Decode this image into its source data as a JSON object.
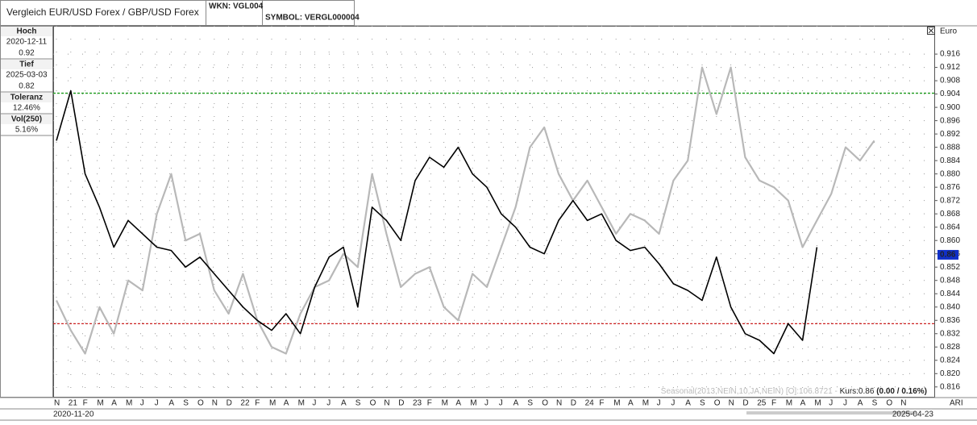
{
  "header": {
    "title": "Vergleich EUR/USD Forex / GBP/USD Forex",
    "wkn": "WKN: VGL004",
    "symbol": "SYMBOL: VERGL000004"
  },
  "stats": [
    {
      "label": "Hoch",
      "date": "2020-12-11",
      "value": "0.92"
    },
    {
      "label": "Tief",
      "date": "2025-03-03",
      "value": "0.82"
    },
    {
      "label": "Toleranz",
      "value": "12.46%"
    },
    {
      "label": "Vol(250)",
      "value": "5.16%"
    }
  ],
  "footer": {
    "start_date": "2020-11-20",
    "end_date": "2025-04-23",
    "tool": "ARI",
    "seasonal": "Seasonal(2013,NEIN,10,JA,NEIN) [O]:106.8721 -",
    "kurs": "Kurs:0.86",
    "change": "(0.00 / 0.16%)"
  },
  "chart_data": {
    "type": "line",
    "y_label": "Euro",
    "categories": [
      "N",
      "21",
      "F",
      "M",
      "A",
      "M",
      "J",
      "J",
      "A",
      "S",
      "O",
      "N",
      "D",
      "22",
      "F",
      "M",
      "A",
      "M",
      "J",
      "J",
      "A",
      "S",
      "O",
      "N",
      "D",
      "23",
      "F",
      "M",
      "A",
      "M",
      "J",
      "J",
      "A",
      "S",
      "O",
      "N",
      "D",
      "24",
      "F",
      "M",
      "A",
      "M",
      "J",
      "J",
      "A",
      "S",
      "O",
      "N",
      "D",
      "25",
      "F",
      "M",
      "A",
      "M",
      "J",
      "J",
      "A",
      "S",
      "O",
      "N"
    ],
    "series": [
      {
        "color": "#b8b8b8",
        "values": [
          0.842,
          0.833,
          0.826,
          0.84,
          0.832,
          0.848,
          0.845,
          0.868,
          0.88,
          0.86,
          0.862,
          0.845,
          0.838,
          0.85,
          0.836,
          0.828,
          0.826,
          0.838,
          0.846,
          0.848,
          0.856,
          0.852,
          0.88,
          0.862,
          0.846,
          0.85,
          0.852,
          0.84,
          0.836,
          0.85,
          0.846,
          0.858,
          0.87,
          0.888,
          0.894,
          0.88,
          0.872,
          0.878,
          0.87,
          0.862,
          0.868,
          0.866,
          0.862,
          0.878,
          0.884,
          0.912,
          0.898,
          0.912,
          0.885,
          0.878,
          0.876,
          0.872,
          0.858,
          0.866,
          0.874,
          0.888,
          0.884,
          0.89,
          null,
          null
        ]
      },
      {
        "color": "#000000",
        "values": [
          0.89,
          0.905,
          0.88,
          0.87,
          0.858,
          0.866,
          0.862,
          0.858,
          0.857,
          0.852,
          0.855,
          0.85,
          0.845,
          0.84,
          0.836,
          0.833,
          0.838,
          0.832,
          0.846,
          0.855,
          0.858,
          0.84,
          0.87,
          0.866,
          0.86,
          0.878,
          0.885,
          0.882,
          0.888,
          0.88,
          0.876,
          0.868,
          0.864,
          0.858,
          0.856,
          0.866,
          0.872,
          0.866,
          0.868,
          0.86,
          0.857,
          0.858,
          0.853,
          0.847,
          0.845,
          0.842,
          0.855,
          0.84,
          0.832,
          0.83,
          0.826,
          0.835,
          0.83,
          0.858,
          null,
          null,
          null,
          null,
          null,
          null
        ]
      }
    ],
    "reference_lines": [
      {
        "value": 0.90425,
        "color": "#1a9a1a"
      },
      {
        "value": 0.835,
        "color": "#cc2222"
      }
    ],
    "last_label": {
      "value": 0.8557,
      "label": "0.86"
    },
    "ylim": [
      0.8128,
      0.9245
    ],
    "yticks": [
      0.816,
      {
        "value": 0.82,
        "label": "0.820"
      },
      0.824,
      0.828,
      0.832,
      0.836,
      {
        "value": 0.84,
        "label": "0.840"
      },
      0.844,
      0.848,
      0.852,
      0.856,
      {
        "value": 0.86,
        "label": "0.860"
      },
      0.864,
      0.868,
      0.872,
      0.876,
      {
        "value": 0.88,
        "label": "0.880"
      },
      0.884,
      0.888,
      0.892,
      0.896,
      {
        "value": 0.9,
        "label": "0.900"
      },
      0.904,
      0.908,
      0.912,
      0.916
    ],
    "grid": true
  }
}
